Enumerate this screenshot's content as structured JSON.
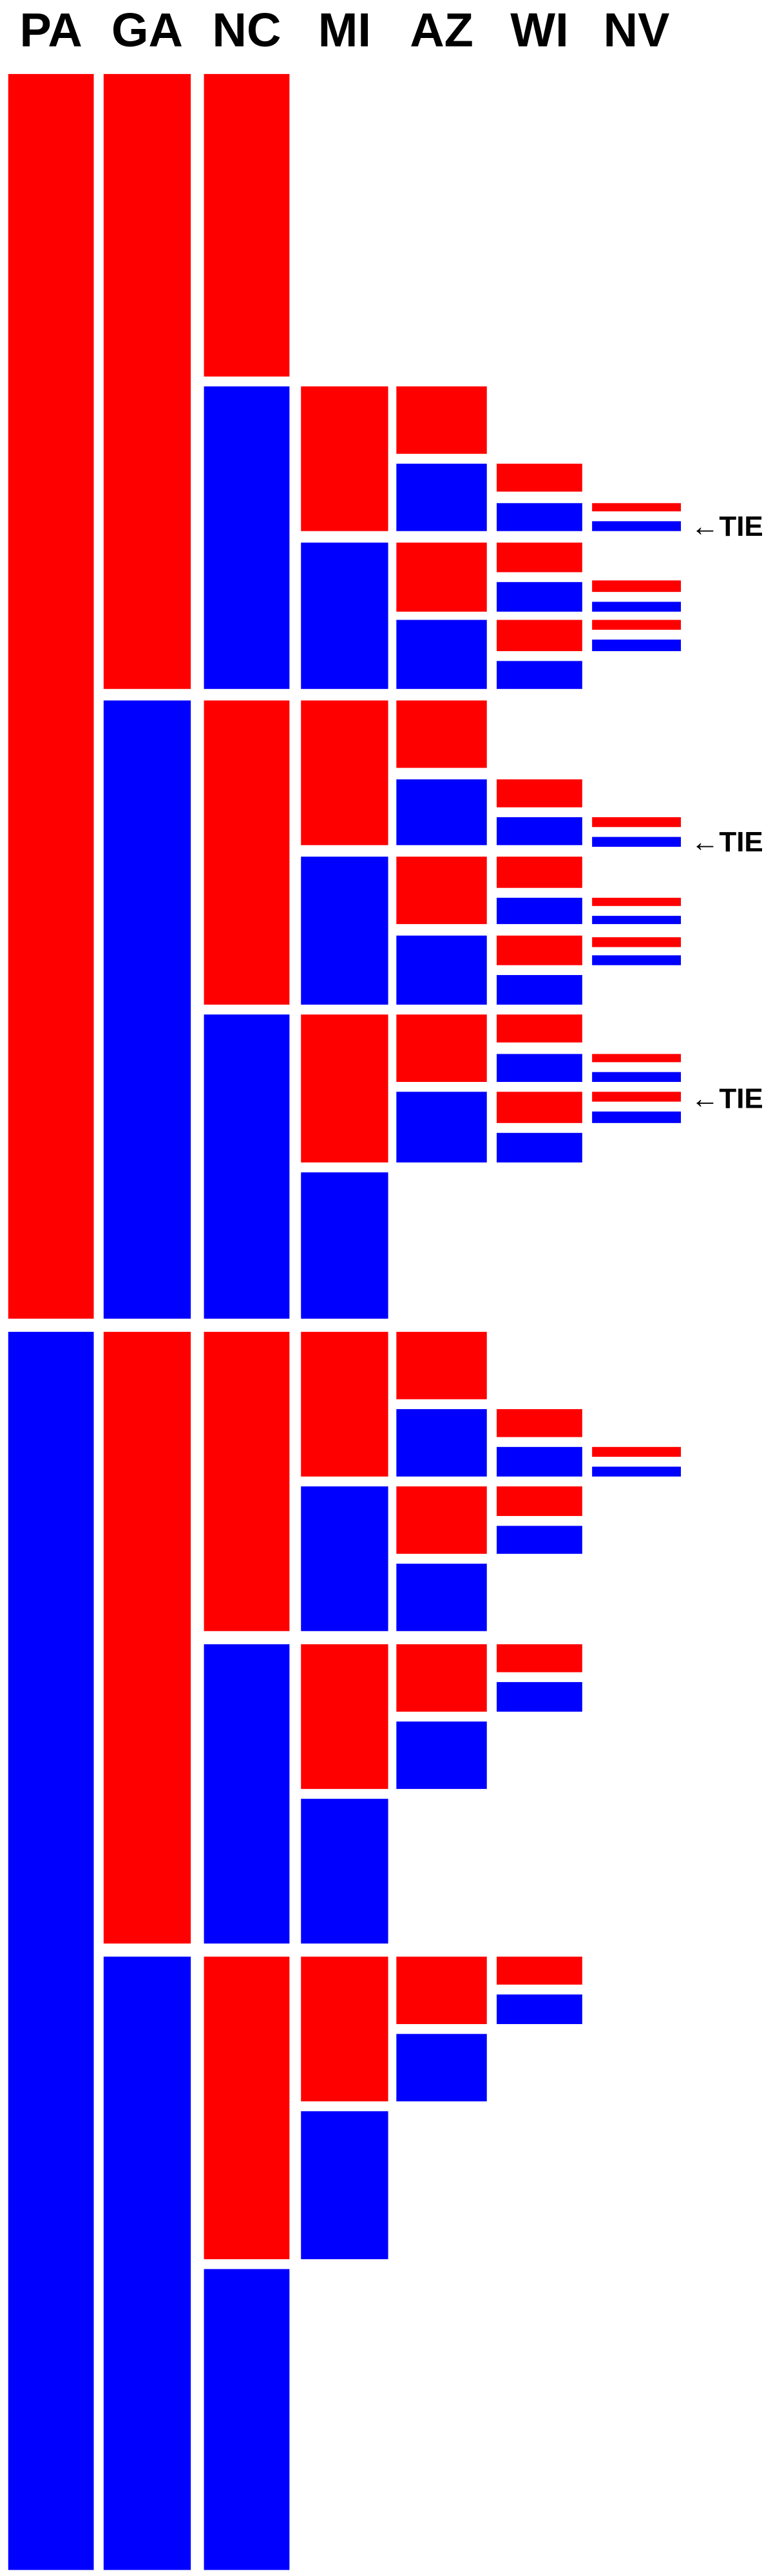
{
  "header": {
    "columns": [
      "PA",
      "GA",
      "NC",
      "MI",
      "AZ",
      "WI",
      "NV"
    ]
  },
  "annotations": [
    "←TIE",
    "←TIE",
    "←TIE"
  ]
}
